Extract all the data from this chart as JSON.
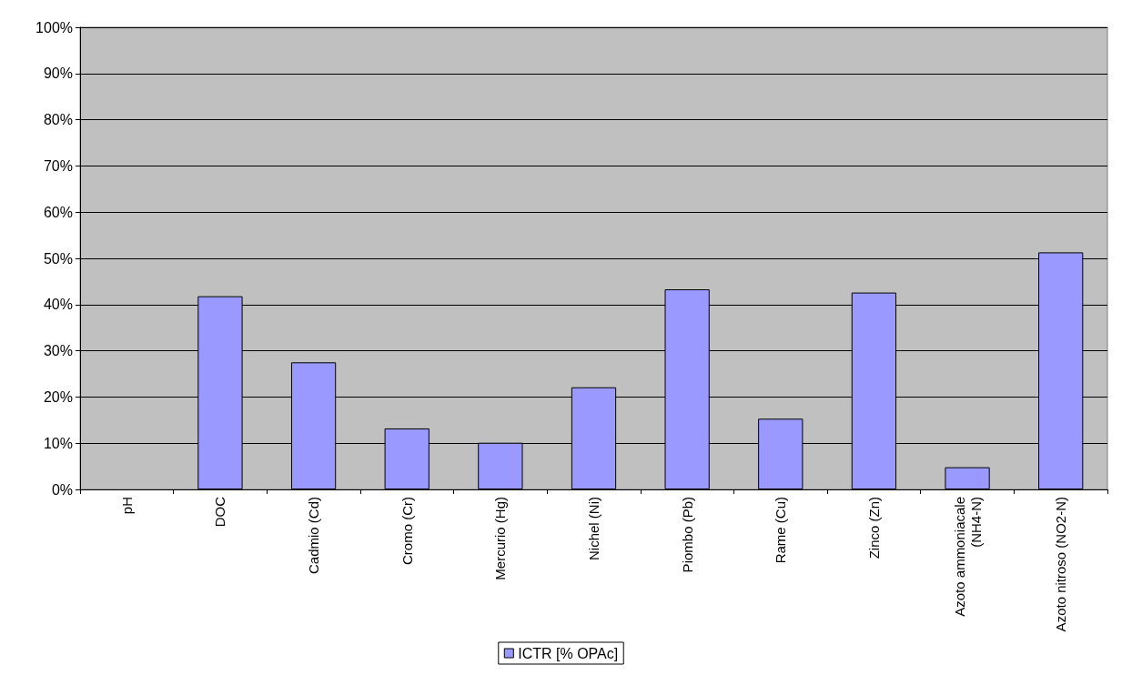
{
  "chart_data": {
    "type": "bar",
    "categories": [
      "pH",
      "DOC",
      "Cadmio (Cd)",
      "Cromo (Cr)",
      "Mercurio (Hg)",
      "Nichel (Ni)",
      "Piombo (Pb)",
      "Rame (Cu)",
      "Zinco (Zn)",
      "Azoto ammoniacale\n(NH4-N)",
      "Azoto nitroso (NO2-N)"
    ],
    "series": [
      {
        "name": "ICTR [% OPAc]",
        "color": "#9999ff",
        "values": [
          null,
          41.8,
          27.5,
          13.2,
          10.1,
          22.1,
          43.3,
          15.3,
          42.6,
          4.8,
          51.3
        ]
      }
    ],
    "ylim": [
      0,
      100
    ],
    "yticks": [
      {
        "value": 0,
        "label": "0%"
      },
      {
        "value": 10,
        "label": "10%"
      },
      {
        "value": 20,
        "label": "20%"
      },
      {
        "value": 30,
        "label": "30%"
      },
      {
        "value": 40,
        "label": "40%"
      },
      {
        "value": 50,
        "label": "50%"
      },
      {
        "value": 60,
        "label": "60%"
      },
      {
        "value": 70,
        "label": "70%"
      },
      {
        "value": 80,
        "label": "80%"
      },
      {
        "value": 90,
        "label": "90%"
      },
      {
        "value": 100,
        "label": "100%"
      }
    ],
    "grid": "y",
    "legend": "bottom"
  }
}
